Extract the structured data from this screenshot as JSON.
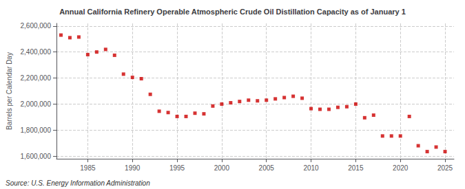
{
  "chart_data": {
    "type": "scatter",
    "title": "Annual California Refinery Operable Atmospheric Crude Oil Distillation Capacity as of January 1",
    "ylabel": "Barrels per Calendar Day",
    "annotations": [
      "Source: U.S. Energy Information Administration"
    ],
    "color": "#cc0000",
    "marker": "square",
    "grid": true,
    "xlim": [
      1981.5,
      2026
    ],
    "ylim": [
      1580000,
      2620000
    ],
    "xticks": [
      1985,
      1990,
      1995,
      2000,
      2005,
      2010,
      2015,
      2020,
      2025
    ],
    "yticks": [
      {
        "value": 1600000,
        "label": "1,600,000"
      },
      {
        "value": 1800000,
        "label": "1,800,000"
      },
      {
        "value": 2000000,
        "label": "2,000,000"
      },
      {
        "value": 2200000,
        "label": "2,200,000"
      },
      {
        "value": 2400000,
        "label": "2,400,000"
      },
      {
        "value": 2600000,
        "label": "2,600,000"
      }
    ],
    "x": [
      1982,
      1983,
      1984,
      1985,
      1986,
      1987,
      1988,
      1989,
      1990,
      1991,
      1992,
      1993,
      1994,
      1995,
      1996,
      1997,
      1998,
      1999,
      2000,
      2001,
      2002,
      2003,
      2004,
      2005,
      2006,
      2007,
      2008,
      2009,
      2010,
      2011,
      2012,
      2013,
      2014,
      2015,
      2016,
      2017,
      2018,
      2019,
      2020,
      2021,
      2022,
      2023,
      2024,
      2025
    ],
    "values": [
      2530000,
      2510000,
      2515000,
      2380000,
      2400000,
      2420000,
      2375000,
      2230000,
      2205000,
      2195000,
      2075000,
      1945000,
      1935000,
      1905000,
      1905000,
      1930000,
      1925000,
      1985000,
      2000000,
      2010000,
      2020000,
      2030000,
      2025000,
      2030000,
      2040000,
      2050000,
      2060000,
      2045000,
      1965000,
      1960000,
      1960000,
      1975000,
      1980000,
      2000000,
      1895000,
      1915000,
      1755000,
      1755000,
      1755000,
      1905000,
      1680000,
      1635000,
      1670000,
      1635000
    ]
  }
}
